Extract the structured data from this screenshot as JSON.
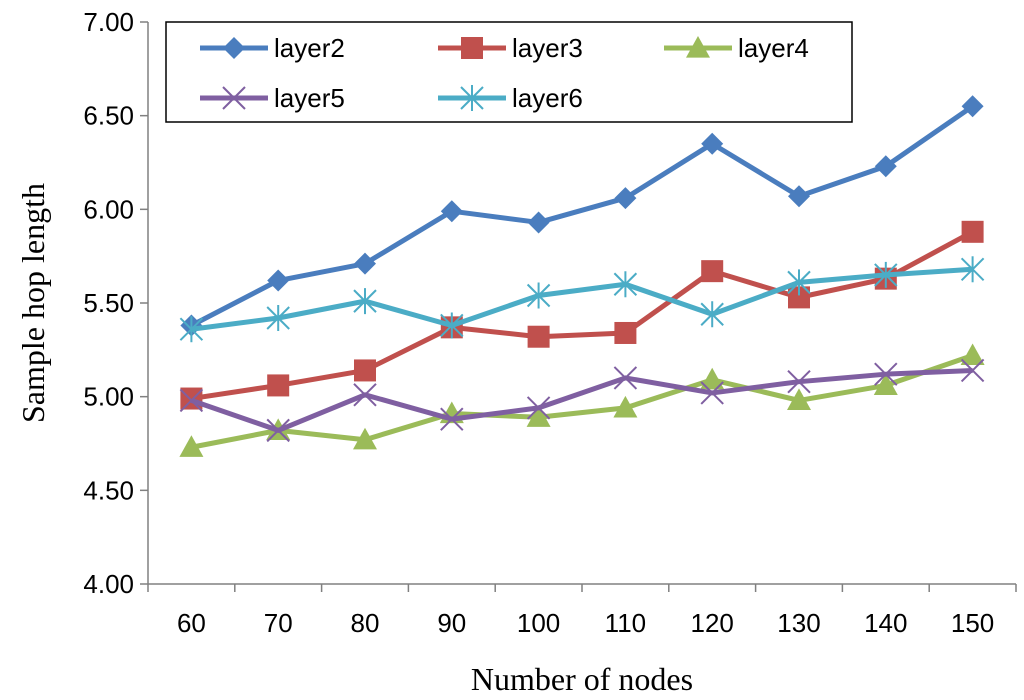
{
  "chart_data": {
    "type": "line",
    "title": "",
    "xlabel": "Number of nodes",
    "ylabel": "Sample hop length",
    "categories": [
      "60",
      "70",
      "80",
      "90",
      "100",
      "110",
      "120",
      "130",
      "140",
      "150"
    ],
    "ylim": [
      4.0,
      7.0
    ],
    "yticks": [
      "4.00",
      "4.50",
      "5.00",
      "5.50",
      "6.00",
      "6.50",
      "7.00"
    ],
    "grid": false,
    "legend_position": "top-left",
    "series": [
      {
        "name": "layer2",
        "color": "#4a7dbe",
        "marker": "diamond",
        "values": [
          5.38,
          5.62,
          5.71,
          5.99,
          5.93,
          6.06,
          6.35,
          6.07,
          6.23,
          6.55
        ]
      },
      {
        "name": "layer3",
        "color": "#c0504d",
        "marker": "square",
        "values": [
          4.99,
          5.06,
          5.14,
          5.37,
          5.32,
          5.34,
          5.67,
          5.53,
          5.63,
          5.88
        ]
      },
      {
        "name": "layer4",
        "color": "#9bbb59",
        "marker": "triangle",
        "values": [
          4.73,
          4.82,
          4.77,
          4.91,
          4.89,
          4.94,
          5.09,
          4.98,
          5.06,
          5.22
        ]
      },
      {
        "name": "layer5",
        "color": "#7f5fa1",
        "marker": "x",
        "values": [
          4.98,
          4.82,
          5.01,
          4.88,
          4.94,
          5.1,
          5.02,
          5.08,
          5.12,
          5.14
        ]
      },
      {
        "name": "layer6",
        "color": "#4bacc6",
        "marker": "asterisk",
        "values": [
          5.36,
          5.42,
          5.51,
          5.38,
          5.54,
          5.6,
          5.44,
          5.61,
          5.65,
          5.68
        ]
      }
    ]
  }
}
